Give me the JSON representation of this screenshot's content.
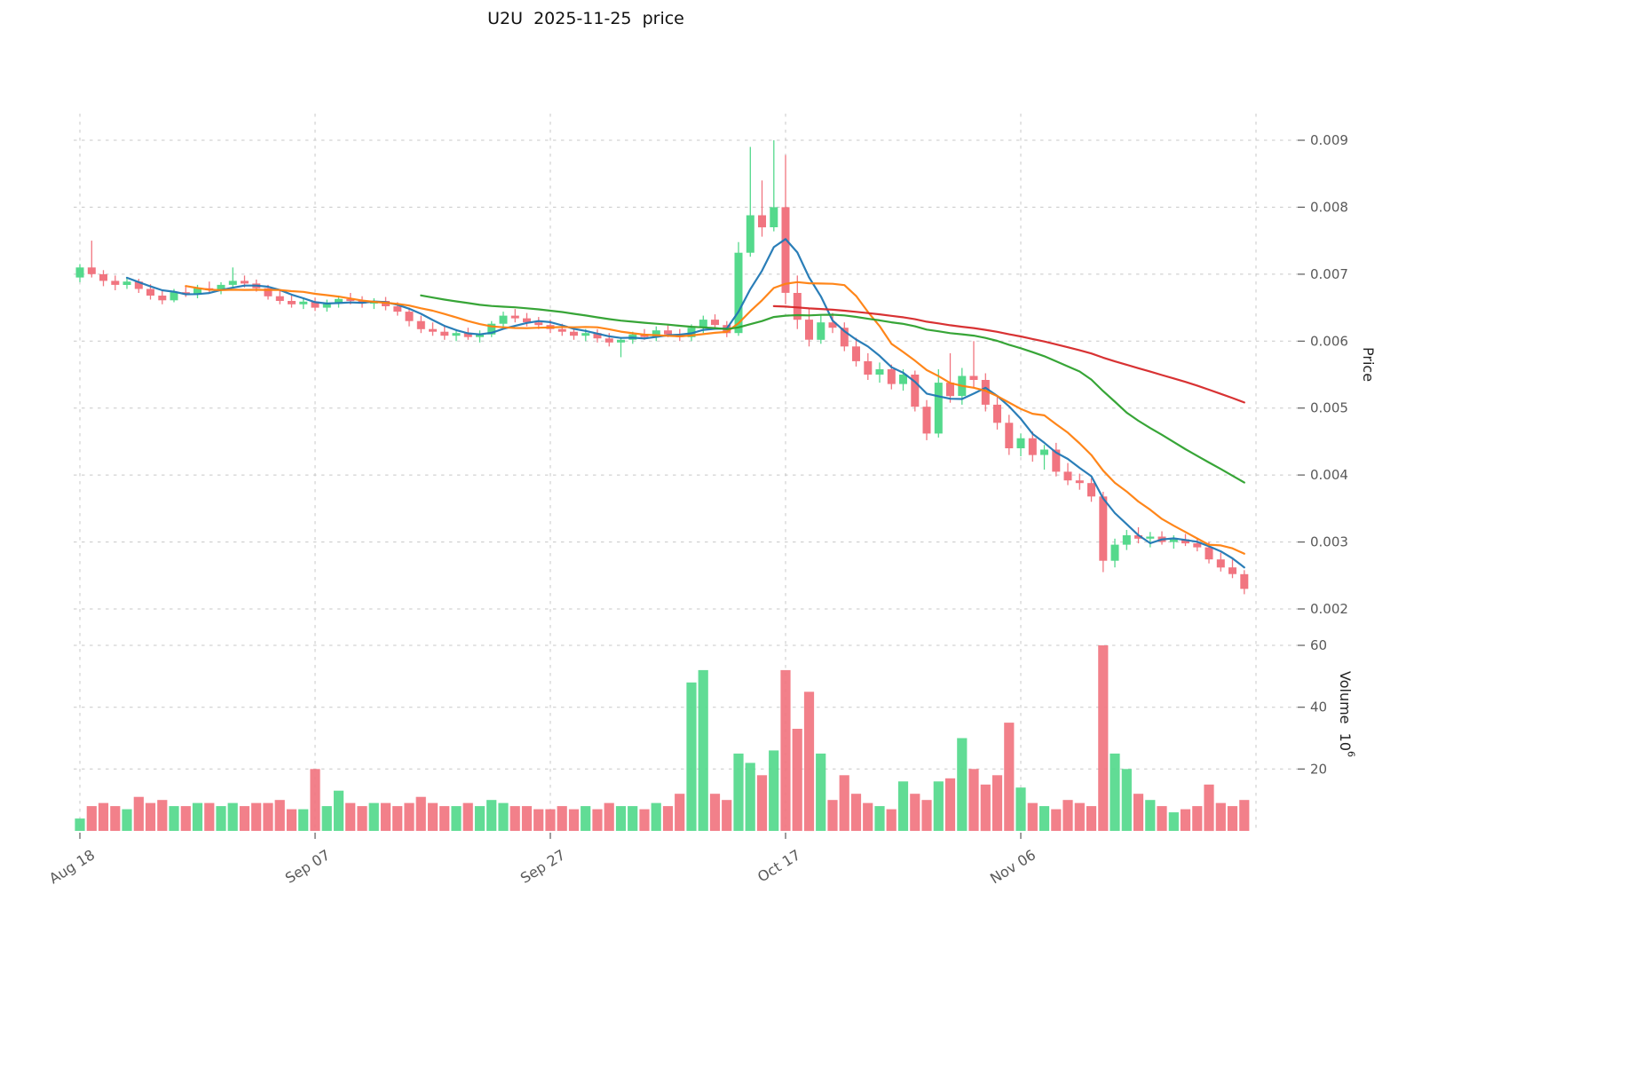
{
  "chart_data": {
    "type": "candlestick",
    "title": "U2U  2025-11-25  price",
    "panels": [
      "price",
      "volume"
    ],
    "price_axis": {
      "label": "Price",
      "ticks": [
        0.002,
        0.003,
        0.004,
        0.005,
        0.006,
        0.007,
        0.008,
        0.009
      ],
      "ylim": [
        0.0019,
        0.0095
      ]
    },
    "volume_axis": {
      "label": "Volume  10",
      "exponent": "6",
      "ticks": [
        20,
        40,
        60
      ],
      "ylim": [
        0,
        63
      ]
    },
    "x_axis": {
      "tick_labels": [
        "Aug 18",
        "Sep 07",
        "Sep 27",
        "Oct 17",
        "Nov 06"
      ],
      "tick_indices": [
        0,
        20,
        40,
        60,
        80
      ],
      "grid_indices": [
        0,
        20,
        40,
        60,
        80,
        100
      ]
    },
    "colors": {
      "up": "#54d98c",
      "down": "#f17580",
      "grid": "#c8c8c8",
      "tick_text": "#595959",
      "ma5": "#1f77b4",
      "ma10": "#ff7f0e",
      "ma30": "#2ca02c",
      "ma60": "#d62728"
    },
    "moving_averages": [
      {
        "window": 5,
        "color": "#1f77b4"
      },
      {
        "window": 10,
        "color": "#ff7f0e"
      },
      {
        "window": 30,
        "color": "#2ca02c"
      },
      {
        "window": 60,
        "color": "#d62728"
      }
    ],
    "dates": [
      "2025-08-18",
      "2025-08-19",
      "2025-08-20",
      "2025-08-21",
      "2025-08-22",
      "2025-08-23",
      "2025-08-24",
      "2025-08-25",
      "2025-08-26",
      "2025-08-27",
      "2025-08-28",
      "2025-08-29",
      "2025-08-30",
      "2025-08-31",
      "2025-09-01",
      "2025-09-02",
      "2025-09-03",
      "2025-09-04",
      "2025-09-05",
      "2025-09-06",
      "2025-09-07",
      "2025-09-08",
      "2025-09-09",
      "2025-09-10",
      "2025-09-11",
      "2025-09-12",
      "2025-09-13",
      "2025-09-14",
      "2025-09-15",
      "2025-09-16",
      "2025-09-17",
      "2025-09-18",
      "2025-09-19",
      "2025-09-20",
      "2025-09-21",
      "2025-09-22",
      "2025-09-23",
      "2025-09-24",
      "2025-09-25",
      "2025-09-26",
      "2025-09-27",
      "2025-09-28",
      "2025-09-29",
      "2025-09-30",
      "2025-10-01",
      "2025-10-02",
      "2025-10-03",
      "2025-10-04",
      "2025-10-05",
      "2025-10-06",
      "2025-10-07",
      "2025-10-08",
      "2025-10-09",
      "2025-10-10",
      "2025-10-11",
      "2025-10-12",
      "2025-10-13",
      "2025-10-14",
      "2025-10-15",
      "2025-10-16",
      "2025-10-17",
      "2025-10-18",
      "2025-10-19",
      "2025-10-20",
      "2025-10-21",
      "2025-10-22",
      "2025-10-23",
      "2025-10-24",
      "2025-10-25",
      "2025-10-26",
      "2025-10-27",
      "2025-10-28",
      "2025-10-29",
      "2025-10-30",
      "2025-10-31",
      "2025-11-01",
      "2025-11-02",
      "2025-11-03",
      "2025-11-04",
      "2025-11-05",
      "2025-11-06",
      "2025-11-07",
      "2025-11-08",
      "2025-11-09",
      "2025-11-10",
      "2025-11-11",
      "2025-11-12",
      "2025-11-13",
      "2025-11-14",
      "2025-11-15",
      "2025-11-16",
      "2025-11-17",
      "2025-11-18",
      "2025-11-19",
      "2025-11-20",
      "2025-11-21",
      "2025-11-22",
      "2025-11-23",
      "2025-11-24",
      "2025-11-25"
    ],
    "open": [
      0.00695,
      0.0071,
      0.007,
      0.0069,
      0.00684,
      0.00689,
      0.00678,
      0.00668,
      0.00661,
      0.00673,
      0.0067,
      0.00679,
      0.00676,
      0.00684,
      0.0069,
      0.00686,
      0.00679,
      0.00667,
      0.0066,
      0.00655,
      0.00659,
      0.0065,
      0.00657,
      0.00663,
      0.0066,
      0.00656,
      0.0066,
      0.00652,
      0.00644,
      0.0063,
      0.00618,
      0.00614,
      0.00608,
      0.00612,
      0.00606,
      0.0061,
      0.00626,
      0.00638,
      0.00634,
      0.00628,
      0.00624,
      0.00618,
      0.00614,
      0.00608,
      0.00612,
      0.00604,
      0.00598,
      0.00602,
      0.0061,
      0.00606,
      0.00616,
      0.0061,
      0.00606,
      0.0062,
      0.00632,
      0.00624,
      0.00612,
      0.00732,
      0.00788,
      0.0077,
      0.008,
      0.00672,
      0.00632,
      0.00602,
      0.00628,
      0.0062,
      0.00592,
      0.0057,
      0.0055,
      0.00558,
      0.00536,
      0.0055,
      0.00502,
      0.00462,
      0.00538,
      0.00518,
      0.00548,
      0.00542,
      0.00505,
      0.00478,
      0.0044,
      0.00455,
      0.0043,
      0.00438,
      0.00405,
      0.00392,
      0.00388,
      0.00368,
      0.00272,
      0.00296,
      0.0031,
      0.00305,
      0.00308,
      0.003,
      0.00304,
      0.00298,
      0.00292,
      0.00274,
      0.00262,
      0.00252
    ],
    "high": [
      0.00715,
      0.0075,
      0.00706,
      0.00698,
      0.00694,
      0.00693,
      0.00685,
      0.00676,
      0.00678,
      0.00682,
      0.00684,
      0.00689,
      0.00688,
      0.0071,
      0.00698,
      0.00692,
      0.00684,
      0.00675,
      0.00668,
      0.00664,
      0.00665,
      0.00662,
      0.00668,
      0.00672,
      0.00667,
      0.00664,
      0.00666,
      0.00658,
      0.0065,
      0.00638,
      0.00628,
      0.00622,
      0.00618,
      0.0062,
      0.00616,
      0.0063,
      0.00644,
      0.00648,
      0.00642,
      0.00636,
      0.00632,
      0.00626,
      0.0062,
      0.00618,
      0.00618,
      0.00612,
      0.00606,
      0.00614,
      0.00618,
      0.00622,
      0.00624,
      0.00618,
      0.00625,
      0.00638,
      0.0064,
      0.0063,
      0.00748,
      0.0089,
      0.0084,
      0.009,
      0.00878,
      0.00698,
      0.0065,
      0.00638,
      0.00642,
      0.00628,
      0.00605,
      0.00582,
      0.00568,
      0.00565,
      0.00558,
      0.00556,
      0.00512,
      0.00558,
      0.00582,
      0.0056,
      0.006,
      0.00552,
      0.00518,
      0.0049,
      0.00462,
      0.00465,
      0.00445,
      0.00448,
      0.00418,
      0.00402,
      0.00395,
      0.00375,
      0.00305,
      0.00318,
      0.00322,
      0.00315,
      0.00316,
      0.0031,
      0.00312,
      0.00306,
      0.003,
      0.00284,
      0.00274,
      0.00258
    ],
    "low": [
      0.00688,
      0.00695,
      0.00682,
      0.00676,
      0.00678,
      0.00672,
      0.00662,
      0.00655,
      0.00658,
      0.00666,
      0.00664,
      0.00672,
      0.0067,
      0.0068,
      0.0068,
      0.00674,
      0.00662,
      0.00655,
      0.0065,
      0.00648,
      0.00645,
      0.00644,
      0.0065,
      0.00655,
      0.0065,
      0.00648,
      0.00646,
      0.00638,
      0.00622,
      0.00612,
      0.00608,
      0.00602,
      0.006,
      0.00602,
      0.00598,
      0.00606,
      0.0062,
      0.00628,
      0.00622,
      0.00618,
      0.00612,
      0.00608,
      0.00602,
      0.006,
      0.00598,
      0.00592,
      0.00576,
      0.00596,
      0.00602,
      0.006,
      0.00606,
      0.006,
      0.006,
      0.00612,
      0.00618,
      0.00606,
      0.00608,
      0.00726,
      0.00756,
      0.00764,
      0.00655,
      0.00618,
      0.00592,
      0.00596,
      0.00612,
      0.00585,
      0.00562,
      0.00542,
      0.00538,
      0.00528,
      0.00526,
      0.00495,
      0.00452,
      0.00456,
      0.00508,
      0.00505,
      0.0053,
      0.00495,
      0.00468,
      0.0043,
      0.00428,
      0.0042,
      0.00408,
      0.00398,
      0.00385,
      0.00378,
      0.0036,
      0.00255,
      0.00262,
      0.00288,
      0.00298,
      0.00292,
      0.00296,
      0.0029,
      0.00294,
      0.00286,
      0.00268,
      0.00256,
      0.00246,
      0.00222
    ],
    "close": [
      0.0071,
      0.007,
      0.0069,
      0.00684,
      0.00689,
      0.00678,
      0.00668,
      0.00661,
      0.00673,
      0.0067,
      0.00679,
      0.00676,
      0.00684,
      0.0069,
      0.00686,
      0.00679,
      0.00667,
      0.0066,
      0.00655,
      0.00659,
      0.0065,
      0.00657,
      0.00663,
      0.0066,
      0.00656,
      0.0066,
      0.00652,
      0.00644,
      0.0063,
      0.00618,
      0.00614,
      0.00608,
      0.00612,
      0.00606,
      0.0061,
      0.00626,
      0.00638,
      0.00634,
      0.00628,
      0.00624,
      0.00618,
      0.00614,
      0.00608,
      0.00612,
      0.00604,
      0.00598,
      0.00602,
      0.0061,
      0.00606,
      0.00616,
      0.0061,
      0.00606,
      0.0062,
      0.00632,
      0.00624,
      0.00612,
      0.00732,
      0.00788,
      0.0077,
      0.008,
      0.00672,
      0.00632,
      0.00602,
      0.00628,
      0.0062,
      0.00592,
      0.0057,
      0.0055,
      0.00558,
      0.00536,
      0.0055,
      0.00502,
      0.00462,
      0.00538,
      0.00518,
      0.00548,
      0.00542,
      0.00505,
      0.00478,
      0.0044,
      0.00455,
      0.0043,
      0.00438,
      0.00405,
      0.00392,
      0.00388,
      0.00368,
      0.00272,
      0.00296,
      0.0031,
      0.00305,
      0.00308,
      0.003,
      0.00304,
      0.00298,
      0.00292,
      0.00274,
      0.00262,
      0.00252,
      0.0023
    ],
    "volume": [
      4,
      8,
      9,
      8,
      7,
      11,
      9,
      10,
      8,
      8,
      9,
      9,
      8,
      9,
      8,
      9,
      9,
      10,
      7,
      7,
      20,
      8,
      13,
      9,
      8,
      9,
      9,
      8,
      9,
      11,
      9,
      8,
      8,
      9,
      8,
      10,
      9,
      8,
      8,
      7,
      7,
      8,
      7,
      8,
      7,
      9,
      8,
      8,
      7,
      9,
      8,
      12,
      48,
      52,
      12,
      10,
      25,
      22,
      18,
      26,
      52,
      33,
      45,
      25,
      10,
      18,
      12,
      9,
      8,
      7,
      16,
      12,
      10,
      16,
      17,
      30,
      20,
      15,
      18,
      35,
      14,
      9,
      8,
      7,
      10,
      9,
      8,
      60,
      25,
      20,
      12,
      10,
      8,
      6,
      7,
      8,
      15,
      9,
      8,
      10
    ]
  }
}
